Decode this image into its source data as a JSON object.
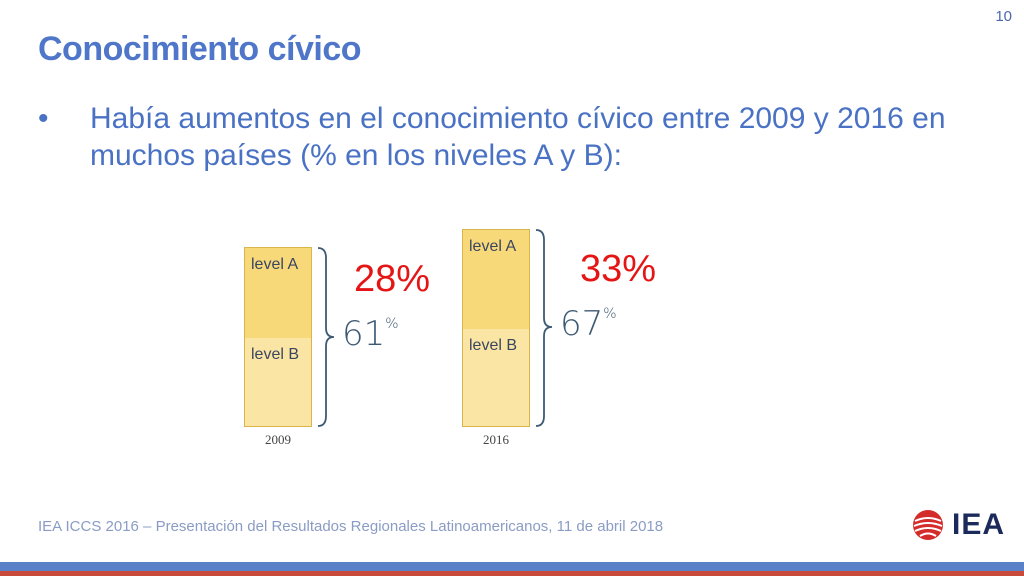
{
  "slide": {
    "page_number": "10",
    "title": "Conocimiento cívico",
    "bullet": "•",
    "bullet_text": "Había aumentos en el conocimiento cívico entre 2009 y 2016 en muchos países (% en los niveles A y B):"
  },
  "chart": {
    "bars": [
      {
        "year": "2009",
        "level_a_label": "level A",
        "level_b_label": "level B",
        "total": "61",
        "unit": "%",
        "level_a_pct": "28%"
      },
      {
        "year": "2016",
        "level_a_label": "level A",
        "level_b_label": "level B",
        "total": "67",
        "unit": "%",
        "level_a_pct": "33%"
      }
    ],
    "colors": {
      "level_a": "#f8d97a",
      "level_b": "#fbe5a4",
      "highlight": "#e51515"
    }
  },
  "footer": {
    "text": "IEA ICCS 2016 – Presentación del Resultados Regionales Latinoamericanos, 11 de abril 2018",
    "logo_text": "IEA",
    "logo_icon": "globe-icon"
  }
}
